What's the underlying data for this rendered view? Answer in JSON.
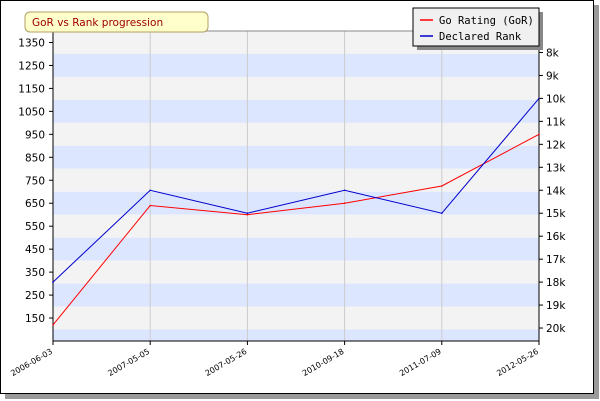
{
  "chart_data": {
    "type": "line",
    "title": "GoR vs Rank progression",
    "x": [
      "2006-06-03",
      "2007-05-05",
      "2007-05-26",
      "2010-09-18",
      "2011-07-09",
      "2012-05-26"
    ],
    "series": [
      {
        "name": "Go Rating (GoR)",
        "color": "#ff0000",
        "axis": "left",
        "values": [
          120,
          640,
          600,
          650,
          725,
          950
        ]
      },
      {
        "name": "Declared Rank",
        "color": "#0000cc",
        "axis": "right",
        "values": [
          "18k",
          "14k",
          "15k",
          "14k",
          "15k",
          "10k"
        ]
      }
    ],
    "y_left": {
      "ticks": [
        150,
        250,
        350,
        450,
        550,
        650,
        750,
        850,
        950,
        1050,
        1150,
        1250,
        1350
      ],
      "range": [
        50,
        1400
      ]
    },
    "y_right": {
      "ticks": [
        "8k",
        "9k",
        "10k",
        "11k",
        "12k",
        "13k",
        "14k",
        "15k",
        "16k",
        "17k",
        "18k",
        "19k",
        "20k"
      ]
    },
    "grid": true,
    "legend_placement": "top-right"
  },
  "colors": {
    "band_light": "#f3f3f3",
    "band_blue": "#dde6ff",
    "grid": "#cccccc",
    "title_bg": "#ffffcc",
    "title_border": "#b0a060",
    "title_text": "#a00000"
  }
}
